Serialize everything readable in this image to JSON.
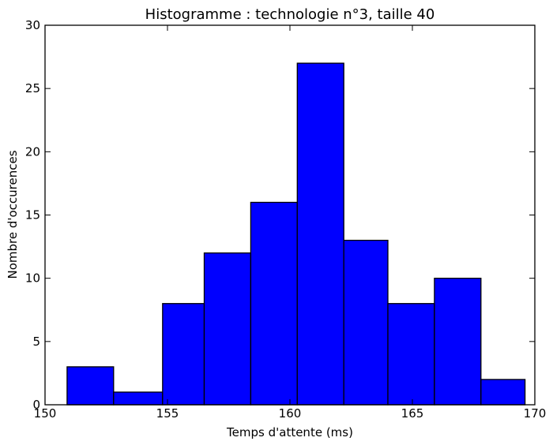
{
  "chart_data": {
    "type": "bar",
    "title": "Histogramme : technologie n°3, taille 40",
    "xlabel": "Temps d'attente (ms)",
    "ylabel": "Nombre d'occurences",
    "xlim": [
      150,
      170
    ],
    "ylim": [
      0,
      30
    ],
    "xticks": [
      "150",
      "155",
      "160",
      "165",
      "170"
    ],
    "yticks": [
      "0",
      "5",
      "10",
      "15",
      "20",
      "25",
      "30"
    ],
    "bins": [
      {
        "start": 150.9,
        "end": 152.8,
        "count": 3
      },
      {
        "start": 152.8,
        "end": 154.8,
        "count": 1
      },
      {
        "start": 154.8,
        "end": 156.5,
        "count": 8
      },
      {
        "start": 156.5,
        "end": 158.4,
        "count": 12
      },
      {
        "start": 158.4,
        "end": 160.3,
        "count": 16
      },
      {
        "start": 160.3,
        "end": 162.2,
        "count": 27
      },
      {
        "start": 162.2,
        "end": 164.0,
        "count": 13
      },
      {
        "start": 164.0,
        "end": 165.9,
        "count": 8
      },
      {
        "start": 165.9,
        "end": 167.8,
        "count": 10
      },
      {
        "start": 167.8,
        "end": 169.6,
        "count": 2
      }
    ],
    "grid": false,
    "legend": "none",
    "bar_color": "#0000ff",
    "edge_color": "#000000"
  }
}
